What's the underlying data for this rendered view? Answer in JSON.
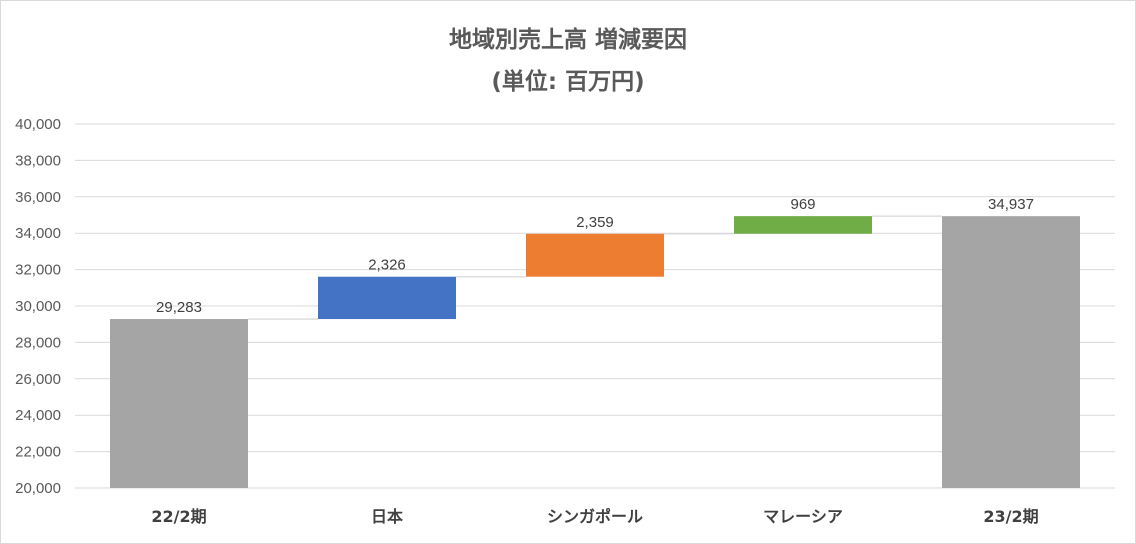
{
  "chart_data": {
    "type": "waterfall",
    "title": "地域別売上高 増減要因",
    "subtitle": "(単位: 百万円)",
    "categories": [
      "22/2期",
      "日本",
      "シンガポール",
      "マレーシア",
      "23/2期"
    ],
    "values": [
      29283,
      2326,
      2359,
      969,
      34937
    ],
    "data_labels": [
      "29,283",
      "2,326",
      "2,359",
      "969",
      "34,937"
    ],
    "kinds": [
      "total",
      "increase",
      "increase",
      "increase",
      "total"
    ],
    "colors": [
      "#a5a5a5",
      "#4472c4",
      "#ed7d31",
      "#70ad47",
      "#a5a5a5"
    ],
    "ylim": [
      20000,
      40000
    ],
    "yticks": [
      "20,000",
      "22,000",
      "24,000",
      "26,000",
      "28,000",
      "30,000",
      "32,000",
      "34,000",
      "36,000",
      "38,000",
      "40,000"
    ],
    "ytick_values": [
      20000,
      22000,
      24000,
      26000,
      28000,
      30000,
      32000,
      34000,
      36000,
      38000,
      40000
    ],
    "grid": true,
    "legend": "none",
    "connector_color": "#d9d9d9",
    "gridline_color": "#d9d9d9"
  }
}
